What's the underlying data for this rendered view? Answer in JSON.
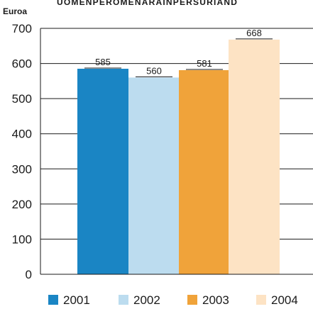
{
  "chart_data": {
    "type": "bar",
    "title": "UOMENPEROMENARAINPERSURIAND",
    "ylabel": "Euroa",
    "xlabel": "",
    "ylim": [
      0,
      700
    ],
    "yticks": [
      "0",
      "100",
      "200",
      "300",
      "400",
      "500",
      "600",
      "700"
    ],
    "grid": true,
    "legend_position": "bottom",
    "categories": [
      "2001",
      "2002",
      "2003",
      "2004"
    ],
    "values": [
      585,
      560,
      581,
      668
    ],
    "data_labels": [
      "585",
      "560",
      "581",
      "668"
    ],
    "colors": [
      "#1a85c4",
      "#bcdcef",
      "#f0a33a",
      "#fde3c4"
    ]
  }
}
